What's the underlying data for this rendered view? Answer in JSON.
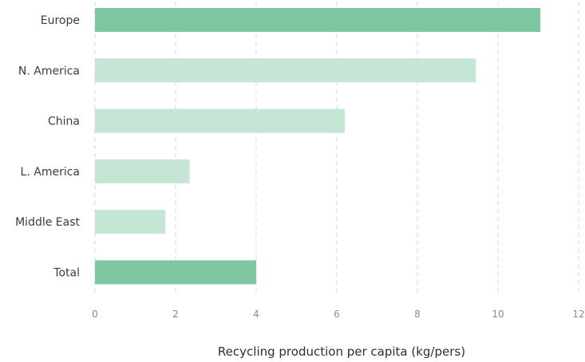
{
  "chart_data": {
    "type": "bar",
    "orientation": "horizontal",
    "categories": [
      "Europe",
      "N. America",
      "China",
      "L. America",
      "Middle East",
      "Total"
    ],
    "values": [
      11.05,
      9.45,
      6.2,
      2.35,
      1.75,
      4.0
    ],
    "highlighted": [
      true,
      false,
      false,
      false,
      false,
      true
    ],
    "xlabel": "Recycling production per capita (kg/pers)",
    "ylabel": "",
    "xlim": [
      0,
      12
    ],
    "xticks": [
      0,
      2,
      4,
      6,
      8,
      10,
      12
    ],
    "grid": true,
    "colors": {
      "highlight": "#7fc6a2",
      "normal": "#c6e6d5"
    }
  }
}
